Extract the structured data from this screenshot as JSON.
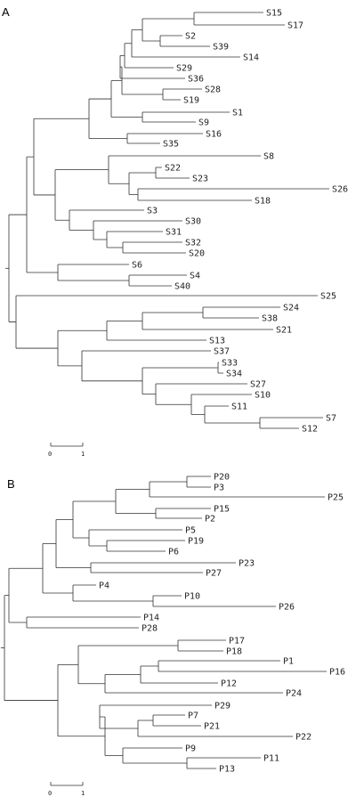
{
  "panels": [
    {
      "label": "A",
      "scale_bar": {
        "start_label": "0",
        "end_label": "1"
      },
      "tree": [
        "S15",
        "S17",
        "S2",
        "S39",
        "S14",
        "S29",
        "S36",
        "S28",
        "S19",
        "S1",
        "S9",
        "S16",
        "S35",
        "S8",
        "S22",
        "S23",
        "S26",
        "S18",
        "S3",
        "S30",
        "S31",
        "S32",
        "S20",
        "S6",
        "S4",
        "S40",
        "S25",
        "S24",
        "S38",
        "S21",
        "S13",
        "S37",
        "S33",
        "S34",
        "S27",
        "S10",
        "S11",
        "S7",
        "S12"
      ]
    },
    {
      "label": "B",
      "scale_bar": {
        "start_label": "0",
        "end_label": "1"
      },
      "tree": [
        "P20",
        "P3",
        "P25",
        "P15",
        "P2",
        "P5",
        "P19",
        "P6",
        "P23",
        "P27",
        "P4",
        "P10",
        "P26",
        "P14",
        "P28",
        "P17",
        "P18",
        "P1",
        "P16",
        "P12",
        "P24",
        "P29",
        "P7",
        "P21",
        "P22",
        "P9",
        "P11",
        "P13"
      ]
    }
  ]
}
